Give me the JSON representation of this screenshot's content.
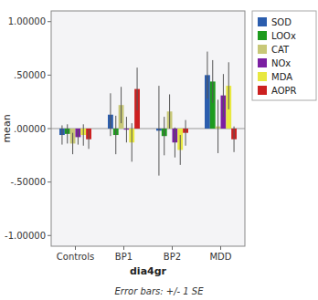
{
  "chart_data": {
    "type": "bar",
    "categories": [
      "Controls",
      "BP1",
      "BP2",
      "MDD"
    ],
    "series": [
      {
        "name": "SOD",
        "color": "#2B5DAD",
        "values": [
          -0.06,
          0.13,
          -0.02,
          0.5
        ],
        "errors": [
          0.09,
          0.2,
          0.42,
          0.22
        ]
      },
      {
        "name": "LOOx",
        "color": "#1E9B1E",
        "values": [
          -0.05,
          -0.06,
          -0.07,
          0.44
        ],
        "errors": [
          0.09,
          0.18,
          0.18,
          0.2
        ]
      },
      {
        "name": "CAT",
        "color": "#C8C878",
        "values": [
          -0.14,
          0.22,
          0.16,
          0.02
        ],
        "errors": [
          0.1,
          0.17,
          0.16,
          0.25
        ]
      },
      {
        "name": "NOx",
        "color": "#7B1FA2",
        "values": [
          -0.08,
          -0.01,
          -0.13,
          0.31
        ],
        "errors": [
          0.07,
          0.12,
          0.14,
          0.2
        ]
      },
      {
        "name": "MDA",
        "color": "#E8E840",
        "values": [
          -0.06,
          -0.13,
          -0.2,
          0.4
        ],
        "errors": [
          0.1,
          0.18,
          0.14,
          0.22
        ]
      },
      {
        "name": "AOPR",
        "color": "#CC2020",
        "values": [
          -0.1,
          0.37,
          -0.04,
          -0.1
        ],
        "errors": [
          0.09,
          0.2,
          0.12,
          0.12
        ]
      }
    ],
    "ylim": [
      -1.1,
      1.1
    ],
    "yticks": [
      {
        "value": -1.0,
        "label": "-1.00000"
      },
      {
        "value": -0.5,
        "label": "-.50000"
      },
      {
        "value": 0.0,
        "label": ".00000"
      },
      {
        "value": 0.5,
        "label": ".50000"
      },
      {
        "value": 1.0,
        "label": "1.00000"
      }
    ],
    "ylabel": "mean",
    "xlabel": "dia4gr",
    "annotations": [
      "Error bars: +/- 1 SE"
    ],
    "legend": "right",
    "grid": false
  }
}
